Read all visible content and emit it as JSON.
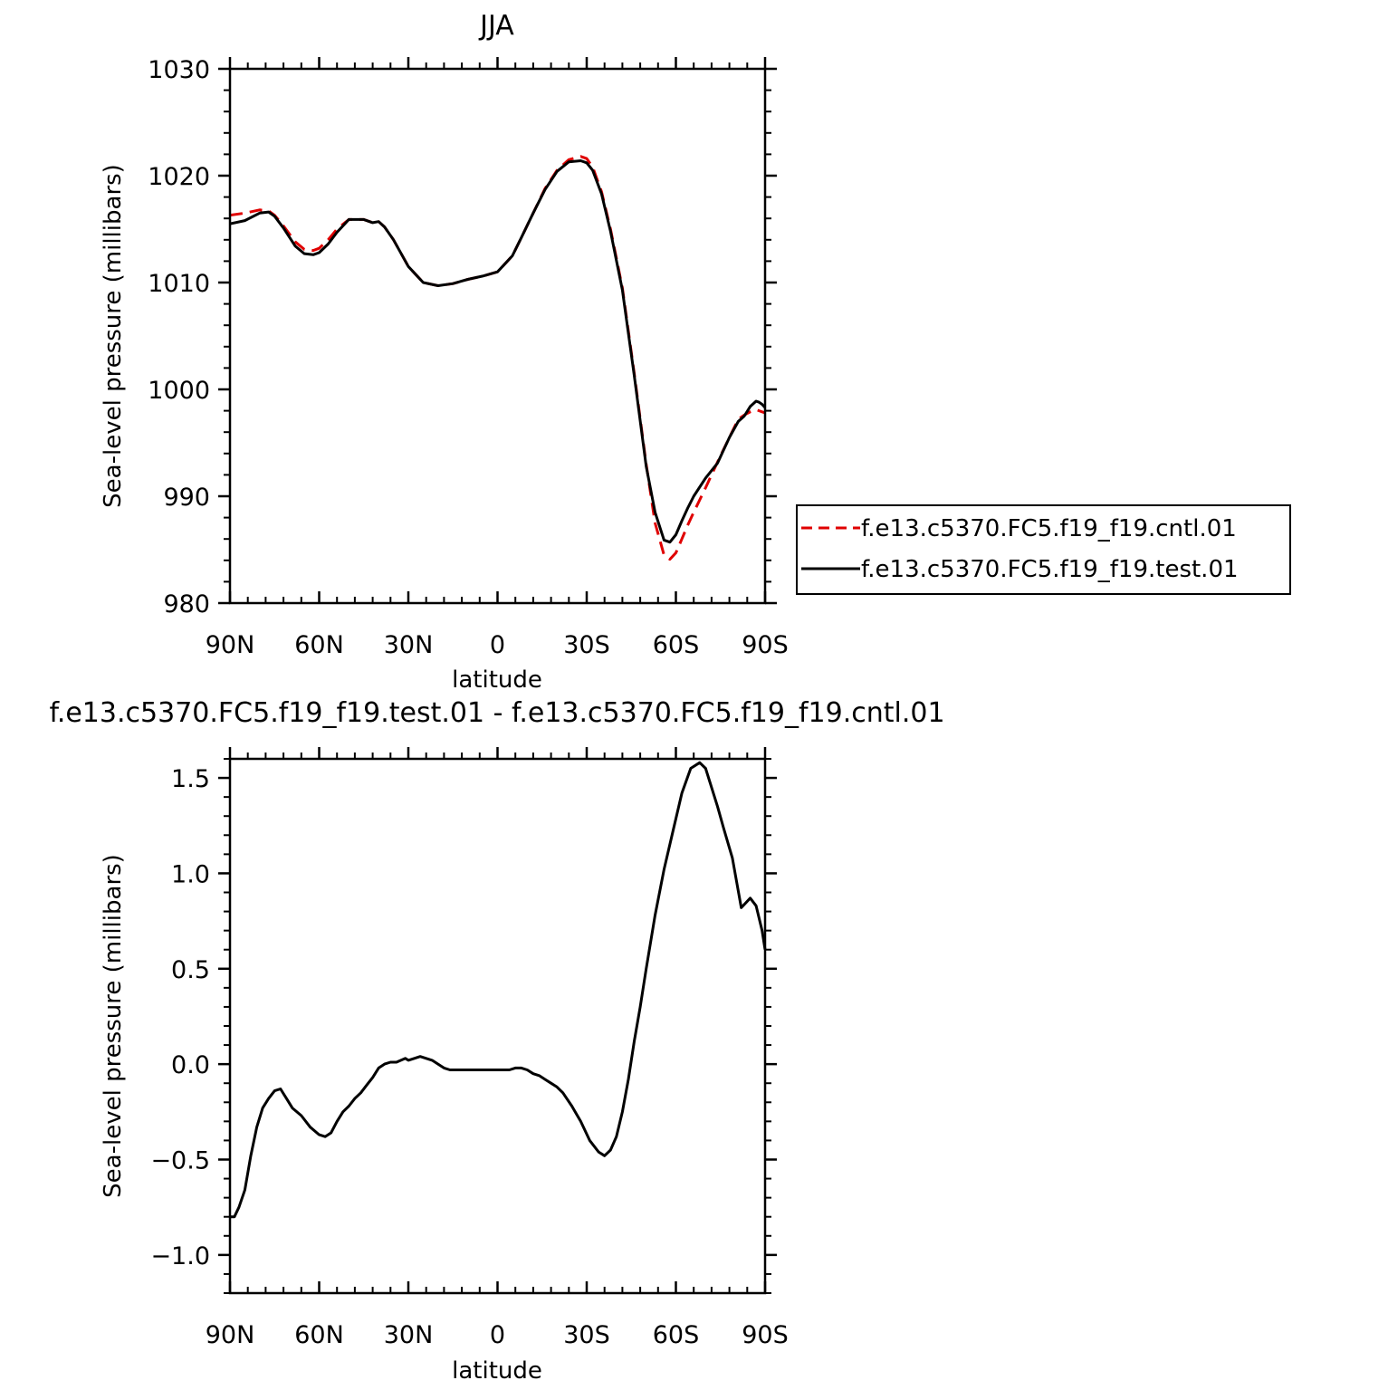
{
  "chart_data": [
    {
      "type": "line",
      "title": "JJA",
      "xlabel": "latitude",
      "ylabel": "Sea-level pressure (millibars)",
      "xlim": [
        90,
        -90
      ],
      "ylim": [
        980,
        1030
      ],
      "x_ticks": [
        {
          "value": 90,
          "label": "90N"
        },
        {
          "value": 60,
          "label": "60N"
        },
        {
          "value": 30,
          "label": "30N"
        },
        {
          "value": 0,
          "label": "0"
        },
        {
          "value": -30,
          "label": "30S"
        },
        {
          "value": -60,
          "label": "60S"
        },
        {
          "value": -90,
          "label": "90S"
        }
      ],
      "y_ticks": [
        {
          "value": 1030,
          "label": "1030"
        },
        {
          "value": 1020,
          "label": "1020"
        },
        {
          "value": 1010,
          "label": "1010"
        },
        {
          "value": 1000,
          "label": "1000"
        },
        {
          "value": 990,
          "label": "990"
        },
        {
          "value": 980,
          "label": "980"
        }
      ],
      "legend_position": "right",
      "series": [
        {
          "name": "f.e13.c5370.FC5.f19_f19.cntl.01",
          "color": "#e00000",
          "style": "dashed",
          "x": [
            90,
            85,
            80,
            77,
            75,
            72,
            68,
            65,
            62,
            60,
            57,
            54,
            50,
            45,
            42,
            40,
            38,
            35,
            30,
            25,
            20,
            15,
            10,
            5,
            0,
            -5,
            -8,
            -12,
            -16,
            -20,
            -24,
            -28,
            -30,
            -32,
            -35,
            -38,
            -42,
            -46,
            -50,
            -53,
            -56,
            -58,
            -60,
            -62,
            -64,
            -66,
            -70,
            -74,
            -78,
            -81,
            -83,
            -85,
            -87,
            -88,
            -89,
            -90
          ],
          "y": [
            1016.3,
            1016.5,
            1016.8,
            1016.7,
            1016.3,
            1015.3,
            1013.8,
            1013.1,
            1013.0,
            1013.2,
            1014.0,
            1015.0,
            1015.9,
            1015.9,
            1015.6,
            1015.7,
            1015.2,
            1014.0,
            1011.5,
            1010.0,
            1009.7,
            1009.9,
            1010.3,
            1010.6,
            1011.0,
            1012.5,
            1014.2,
            1016.5,
            1018.8,
            1020.5,
            1021.5,
            1021.8,
            1021.6,
            1020.8,
            1018.5,
            1015.0,
            1009.5,
            1001.5,
            993.0,
            987.5,
            984.5,
            984.1,
            984.7,
            986.0,
            987.3,
            988.5,
            990.8,
            993.2,
            995.5,
            997.2,
            997.6,
            997.9,
            998.1,
            998.0,
            997.9,
            997.8
          ]
        },
        {
          "name": "f.e13.c5370.FC5.f19_f19.test.01",
          "color": "#000000",
          "style": "solid",
          "x": [
            90,
            85,
            80,
            77,
            75,
            72,
            68,
            65,
            62,
            60,
            57,
            54,
            50,
            45,
            42,
            40,
            38,
            35,
            30,
            25,
            20,
            15,
            10,
            5,
            0,
            -5,
            -8,
            -12,
            -16,
            -20,
            -24,
            -28,
            -30,
            -32,
            -35,
            -38,
            -42,
            -46,
            -50,
            -53,
            -56,
            -58,
            -60,
            -62,
            -64,
            -66,
            -70,
            -74,
            -78,
            -81,
            -83,
            -85,
            -87,
            -88,
            -89,
            -90
          ],
          "y": [
            1015.5,
            1015.8,
            1016.5,
            1016.6,
            1016.2,
            1015.1,
            1013.4,
            1012.7,
            1012.6,
            1012.8,
            1013.6,
            1014.7,
            1015.9,
            1015.9,
            1015.6,
            1015.7,
            1015.2,
            1014.0,
            1011.5,
            1010.0,
            1009.7,
            1009.9,
            1010.3,
            1010.6,
            1011.0,
            1012.5,
            1014.2,
            1016.5,
            1018.7,
            1020.4,
            1021.3,
            1021.4,
            1021.2,
            1020.5,
            1018.3,
            1014.8,
            1009.3,
            1001.3,
            992.8,
            988.5,
            985.9,
            985.7,
            986.4,
            987.7,
            988.9,
            990.0,
            991.7,
            993.1,
            995.5,
            997.0,
            997.5,
            998.4,
            998.9,
            998.8,
            998.6,
            998.3
          ]
        }
      ]
    },
    {
      "type": "line",
      "title": "f.e13.c5370.FC5.f19_f19.test.01 - f.e13.c5370.FC5.f19_f19.cntl.01",
      "xlabel": "latitude",
      "ylabel": "Sea-level pressure (millibars)",
      "xlim": [
        90,
        -90
      ],
      "ylim": [
        -1.2,
        1.6
      ],
      "x_ticks": [
        {
          "value": 90,
          "label": "90N"
        },
        {
          "value": 60,
          "label": "60N"
        },
        {
          "value": 30,
          "label": "30N"
        },
        {
          "value": 0,
          "label": "0"
        },
        {
          "value": -30,
          "label": "30S"
        },
        {
          "value": -60,
          "label": "60S"
        },
        {
          "value": -90,
          "label": "90S"
        }
      ],
      "y_ticks": [
        {
          "value": 1.5,
          "label": "1.5"
        },
        {
          "value": 1.0,
          "label": "1.0"
        },
        {
          "value": 0.5,
          "label": "0.5"
        },
        {
          "value": 0.0,
          "label": "0.0"
        },
        {
          "value": -0.5,
          "label": "−0.5"
        },
        {
          "value": -1.0,
          "label": "−1.0"
        }
      ],
      "series": [
        {
          "color": "#000000",
          "style": "solid",
          "x": [
            90,
            88.5,
            87,
            85,
            83,
            81,
            79,
            77,
            75,
            73,
            71,
            69,
            66,
            63,
            60,
            58,
            56,
            54,
            52,
            50,
            48,
            46,
            44,
            42,
            40,
            38,
            36,
            34,
            31,
            30,
            28,
            26,
            24,
            22,
            20,
            18,
            16,
            14,
            12,
            10,
            8,
            6,
            4,
            2,
            0,
            -2,
            -4,
            -6,
            -8,
            -10,
            -12,
            -14,
            -16,
            -18,
            -20,
            -22,
            -25,
            -28,
            -31,
            -34,
            -36,
            -38,
            -40,
            -42,
            -44,
            -46,
            -48,
            -50,
            -53,
            -56,
            -59,
            -62,
            -65,
            -68,
            -70,
            -72,
            -74,
            -76,
            -79,
            -82,
            -85,
            -87,
            -89,
            -90
          ],
          "y": [
            -0.8,
            -0.8,
            -0.75,
            -0.66,
            -0.48,
            -0.33,
            -0.23,
            -0.18,
            -0.14,
            -0.13,
            -0.18,
            -0.23,
            -0.27,
            -0.33,
            -0.37,
            -0.38,
            -0.36,
            -0.3,
            -0.25,
            -0.22,
            -0.18,
            -0.15,
            -0.11,
            -0.07,
            -0.02,
            0.0,
            0.01,
            0.01,
            0.03,
            0.02,
            0.03,
            0.04,
            0.03,
            0.02,
            0.0,
            -0.02,
            -0.03,
            -0.03,
            -0.03,
            -0.03,
            -0.03,
            -0.03,
            -0.03,
            -0.03,
            -0.03,
            -0.03,
            -0.03,
            -0.02,
            -0.02,
            -0.03,
            -0.05,
            -0.06,
            -0.08,
            -0.1,
            -0.12,
            -0.15,
            -0.22,
            -0.3,
            -0.4,
            -0.46,
            -0.48,
            -0.45,
            -0.38,
            -0.25,
            -0.08,
            0.12,
            0.3,
            0.5,
            0.78,
            1.02,
            1.22,
            1.42,
            1.55,
            1.58,
            1.55,
            1.45,
            1.35,
            1.24,
            1.08,
            0.82,
            0.87,
            0.83,
            0.7,
            0.6
          ]
        }
      ]
    }
  ]
}
